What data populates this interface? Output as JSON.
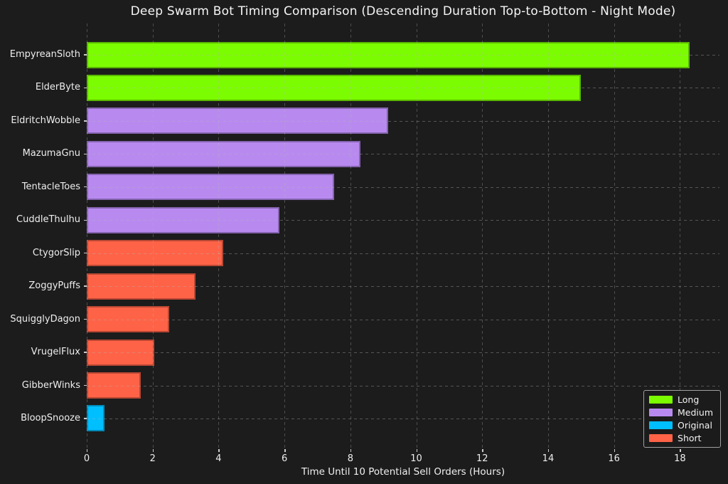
{
  "theme": {
    "background": "#1c1c1c",
    "text": "#f2f2f2",
    "grid": "#4a4a4a"
  },
  "chart_data": {
    "type": "bar",
    "orientation": "horizontal",
    "title": "Deep Swarm Bot Timing Comparison (Descending Duration Top-to-Bottom - Night Mode)",
    "xlabel": "Time Until 10 Potential Sell Orders (Hours)",
    "ylabel": "",
    "xlim": [
      0,
      19.2
    ],
    "xticks": [
      0,
      2,
      4,
      6,
      8,
      10,
      12,
      14,
      16,
      18
    ],
    "grid": true,
    "grid_style": "dashed",
    "legend_position": "lower-right",
    "bars": [
      {
        "label": "EmpyreanSloth",
        "value": 18.3,
        "group": "Long"
      },
      {
        "label": "ElderByte",
        "value": 15.0,
        "group": "Long"
      },
      {
        "label": "EldritchWobble",
        "value": 9.15,
        "group": "Medium"
      },
      {
        "label": "MazumaGnu",
        "value": 8.3,
        "group": "Medium"
      },
      {
        "label": "TentacleToes",
        "value": 7.5,
        "group": "Medium"
      },
      {
        "label": "CuddleThulhu",
        "value": 5.85,
        "group": "Medium"
      },
      {
        "label": "CtygorSlip",
        "value": 4.15,
        "group": "Short"
      },
      {
        "label": "ZoggyPuffs",
        "value": 3.3,
        "group": "Short"
      },
      {
        "label": "SquigglyDagon",
        "value": 2.5,
        "group": "Short"
      },
      {
        "label": "VrugelFlux",
        "value": 2.05,
        "group": "Short"
      },
      {
        "label": "GibberWinks",
        "value": 1.65,
        "group": "Short"
      },
      {
        "label": "BloopSnooze",
        "value": 0.55,
        "group": "Original"
      }
    ],
    "legend": [
      {
        "label": "Long",
        "color": "#7cfc00"
      },
      {
        "label": "Medium",
        "color": "#b88af0"
      },
      {
        "label": "Original",
        "color": "#00bfff"
      },
      {
        "label": "Short",
        "color": "#ff6347"
      }
    ]
  }
}
